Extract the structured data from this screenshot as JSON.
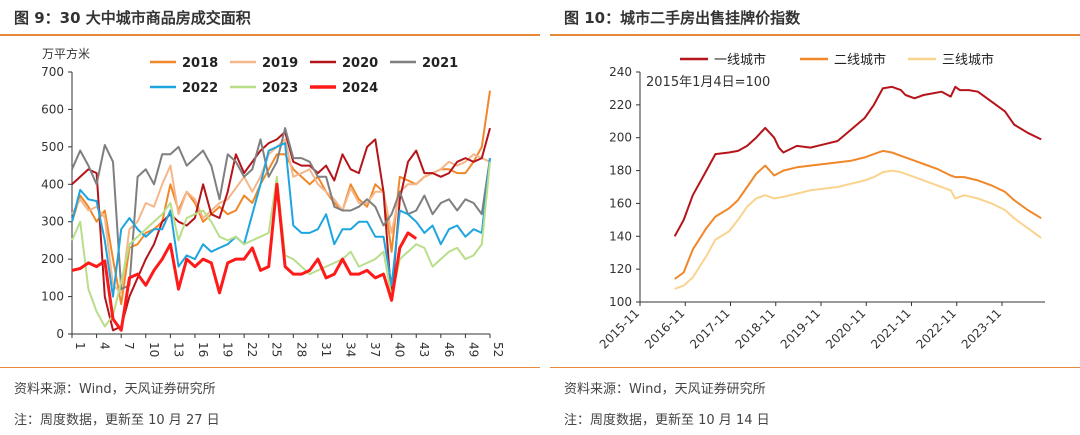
{
  "charts": [
    {
      "title": "图 9：30 大中城市商品房成交面积",
      "source": "资料来源：Wind，天风证券研究所",
      "note": "注：周度数据，更新至 10 月 27 日"
    },
    {
      "title": "图 10：城市二手房出售挂牌价指数",
      "source": "资料来源：Wind，天风证券研究所",
      "note": "注：周度数据，更新至 10 月 14 日"
    }
  ],
  "chart_data": [
    {
      "type": "line",
      "ylabel": "万平方米",
      "ylim": [
        0,
        700
      ],
      "yticks": [
        0,
        100,
        200,
        300,
        400,
        500,
        600,
        700
      ],
      "xlim": [
        1,
        52
      ],
      "xticks": [
        1,
        4,
        7,
        10,
        13,
        16,
        19,
        22,
        25,
        28,
        31,
        34,
        37,
        40,
        43,
        46,
        49,
        52
      ],
      "grid": false,
      "legend_position": "top",
      "series": [
        {
          "name": "2018",
          "color": "#f0882a",
          "x": [
            1,
            2,
            3,
            4,
            5,
            6,
            7,
            8,
            9,
            10,
            11,
            12,
            13,
            14,
            15,
            16,
            17,
            18,
            19,
            20,
            21,
            22,
            23,
            24,
            25,
            26,
            27,
            28,
            29,
            30,
            31,
            32,
            33,
            34,
            35,
            36,
            37,
            38,
            39,
            40,
            41,
            42,
            43,
            44,
            45,
            46,
            47,
            48,
            49,
            50,
            51,
            52
          ],
          "values": [
            300,
            370,
            340,
            300,
            330,
            200,
            80,
            230,
            240,
            270,
            280,
            300,
            400,
            330,
            380,
            350,
            300,
            320,
            340,
            320,
            330,
            370,
            350,
            400,
            440,
            480,
            480,
            440,
            420,
            400,
            420,
            380,
            350,
            330,
            400,
            360,
            340,
            400,
            380,
            220,
            420,
            410,
            400,
            420,
            430,
            440,
            440,
            430,
            430,
            460,
            500,
            650
          ]
        },
        {
          "name": "2019",
          "color": "#f5b78a",
          "x": [
            1,
            2,
            3,
            4,
            5,
            6,
            7,
            8,
            9,
            10,
            11,
            12,
            13,
            14,
            15,
            16,
            17,
            18,
            19,
            20,
            21,
            22,
            23,
            24,
            25,
            26,
            27,
            28,
            29,
            30,
            31,
            32,
            33,
            34,
            35,
            36,
            37,
            38,
            39,
            40,
            41,
            42,
            43,
            44,
            45,
            46,
            47,
            48,
            49,
            50,
            51,
            52
          ],
          "values": [
            320,
            360,
            330,
            340,
            310,
            130,
            110,
            280,
            300,
            350,
            340,
            400,
            450,
            320,
            380,
            360,
            310,
            330,
            350,
            360,
            390,
            420,
            380,
            420,
            480,
            500,
            520,
            420,
            430,
            440,
            400,
            380,
            360,
            330,
            390,
            350,
            350,
            380,
            380,
            270,
            380,
            400,
            400,
            420,
            430,
            440,
            460,
            450,
            460,
            480,
            470,
            460
          ]
        },
        {
          "name": "2020",
          "color": "#b5141a",
          "x": [
            1,
            2,
            3,
            4,
            5,
            6,
            7,
            8,
            9,
            10,
            11,
            12,
            13,
            14,
            15,
            16,
            17,
            18,
            19,
            20,
            21,
            22,
            23,
            24,
            25,
            26,
            27,
            28,
            29,
            30,
            31,
            32,
            33,
            34,
            35,
            36,
            37,
            38,
            39,
            40,
            41,
            42,
            43,
            44,
            45,
            46,
            47,
            48,
            49,
            50,
            51,
            52
          ],
          "values": [
            400,
            420,
            440,
            430,
            100,
            10,
            20,
            100,
            150,
            200,
            240,
            300,
            320,
            300,
            290,
            310,
            400,
            320,
            310,
            380,
            480,
            430,
            460,
            490,
            510,
            520,
            540,
            460,
            450,
            450,
            430,
            450,
            410,
            480,
            440,
            430,
            500,
            520,
            380,
            90,
            360,
            460,
            490,
            430,
            430,
            420,
            430,
            460,
            470,
            460,
            470,
            550
          ]
        },
        {
          "name": "2021",
          "color": "#7f7f7f",
          "x": [
            1,
            2,
            3,
            4,
            5,
            6,
            7,
            8,
            9,
            10,
            11,
            12,
            13,
            14,
            15,
            16,
            17,
            18,
            19,
            20,
            21,
            22,
            23,
            24,
            25,
            26,
            27,
            28,
            29,
            30,
            31,
            32,
            33,
            34,
            35,
            36,
            37,
            38,
            39,
            40,
            41,
            42,
            43,
            44,
            45,
            46,
            47,
            48,
            49,
            50,
            51,
            52
          ],
          "values": [
            440,
            490,
            450,
            400,
            505,
            460,
            120,
            130,
            420,
            440,
            400,
            480,
            480,
            500,
            450,
            470,
            490,
            450,
            360,
            480,
            460,
            420,
            440,
            520,
            420,
            460,
            550,
            470,
            470,
            460,
            420,
            420,
            340,
            330,
            330,
            340,
            360,
            340,
            290,
            320,
            380,
            320,
            330,
            370,
            320,
            350,
            360,
            330,
            360,
            350,
            320,
            470
          ]
        },
        {
          "name": "2022",
          "color": "#1ea5e0",
          "x": [
            1,
            2,
            3,
            4,
            5,
            6,
            7,
            8,
            9,
            10,
            11,
            12,
            13,
            14,
            15,
            16,
            17,
            18,
            19,
            20,
            21,
            22,
            23,
            24,
            25,
            26,
            27,
            28,
            29,
            30,
            31,
            32,
            33,
            34,
            35,
            36,
            37,
            38,
            39,
            40,
            41,
            42,
            43,
            44,
            45,
            46,
            47,
            48,
            49,
            50,
            51,
            52
          ],
          "values": [
            300,
            385,
            360,
            355,
            250,
            100,
            280,
            310,
            280,
            260,
            280,
            280,
            330,
            180,
            210,
            200,
            240,
            220,
            230,
            240,
            260,
            240,
            320,
            400,
            490,
            500,
            510,
            290,
            270,
            270,
            280,
            320,
            240,
            280,
            280,
            300,
            300,
            260,
            260,
            130,
            330,
            320,
            300,
            270,
            290,
            240,
            280,
            290,
            260,
            280,
            270,
            470
          ]
        },
        {
          "name": "2023",
          "color": "#b8de8a",
          "x": [
            1,
            2,
            3,
            4,
            5,
            6,
            7,
            8,
            9,
            10,
            11,
            12,
            13,
            14,
            15,
            16,
            17,
            18,
            19,
            20,
            21,
            22,
            23,
            24,
            25,
            26,
            27,
            28,
            29,
            30,
            31,
            32,
            33,
            34,
            35,
            36,
            37,
            38,
            39,
            40,
            41,
            42,
            43,
            44,
            45,
            46,
            47,
            48,
            49,
            50,
            51,
            52
          ],
          "values": [
            250,
            300,
            120,
            60,
            20,
            50,
            140,
            240,
            260,
            280,
            300,
            320,
            350,
            250,
            310,
            320,
            330,
            300,
            260,
            250,
            260,
            240,
            250,
            260,
            270,
            420,
            210,
            200,
            180,
            160,
            170,
            180,
            190,
            200,
            220,
            180,
            190,
            200,
            220,
            100,
            200,
            220,
            240,
            230,
            180,
            200,
            220,
            230,
            200,
            210,
            240,
            460
          ]
        },
        {
          "name": "2024",
          "color": "#ff1a1a",
          "bold": true,
          "x": [
            1,
            2,
            3,
            4,
            5,
            6,
            7,
            8,
            9,
            10,
            11,
            12,
            13,
            14,
            15,
            16,
            17,
            18,
            19,
            20,
            21,
            22,
            23,
            24,
            25,
            26,
            27,
            28,
            29,
            30,
            31,
            32,
            33,
            34,
            35,
            36,
            37,
            38,
            39,
            40,
            41,
            42,
            43
          ],
          "values": [
            170,
            175,
            190,
            180,
            195,
            40,
            10,
            150,
            160,
            130,
            170,
            200,
            240,
            120,
            200,
            180,
            200,
            190,
            110,
            190,
            200,
            200,
            230,
            170,
            180,
            400,
            180,
            160,
            160,
            170,
            200,
            150,
            160,
            200,
            160,
            160,
            170,
            150,
            160,
            90,
            230,
            270,
            255
          ]
        }
      ]
    },
    {
      "type": "line",
      "annotation": "2015年1月4日=100",
      "ylim": [
        100,
        240
      ],
      "yticks": [
        100,
        120,
        140,
        160,
        180,
        200,
        220,
        240
      ],
      "xticks": [
        "2015-11",
        "2016-11",
        "2017-11",
        "2018-11",
        "2019-11",
        "2020-11",
        "2021-11",
        "2022-11",
        "2023-11"
      ],
      "grid": false,
      "legend_position": "top",
      "series": [
        {
          "name": "一线城市",
          "color": "#b5141a",
          "x": [
            2016.6,
            2016.8,
            2017.0,
            2017.3,
            2017.5,
            2017.8,
            2018.0,
            2018.2,
            2018.4,
            2018.6,
            2018.8,
            2018.9,
            2019.0,
            2019.3,
            2019.6,
            2019.9,
            2020.2,
            2020.5,
            2020.8,
            2021.0,
            2021.2,
            2021.4,
            2021.6,
            2021.7,
            2021.9,
            2022.1,
            2022.3,
            2022.5,
            2022.7,
            2022.8,
            2022.9,
            2023.1,
            2023.3,
            2023.6,
            2023.9,
            2024.1,
            2024.4,
            2024.7
          ],
          "values": [
            140,
            150,
            165,
            180,
            190,
            191,
            192,
            195,
            200,
            206,
            200,
            194,
            191,
            195,
            194,
            196,
            198,
            205,
            212,
            220,
            230,
            231,
            229,
            226,
            224,
            226,
            227,
            228,
            225,
            231,
            229,
            229,
            228,
            222,
            216,
            208,
            203,
            199
          ]
        },
        {
          "name": "二线城市",
          "color": "#f0882a",
          "x": [
            2016.6,
            2016.8,
            2017.0,
            2017.3,
            2017.5,
            2017.8,
            2018.0,
            2018.2,
            2018.4,
            2018.6,
            2018.8,
            2019.0,
            2019.3,
            2019.6,
            2019.9,
            2020.2,
            2020.5,
            2020.8,
            2021.0,
            2021.2,
            2021.4,
            2021.6,
            2021.9,
            2022.1,
            2022.4,
            2022.7,
            2022.8,
            2023.0,
            2023.3,
            2023.6,
            2023.9,
            2024.1,
            2024.4,
            2024.7
          ],
          "values": [
            114,
            118,
            132,
            145,
            152,
            157,
            162,
            170,
            178,
            183,
            177,
            180,
            182,
            183,
            184,
            185,
            186,
            188,
            190,
            192,
            191,
            189,
            186,
            184,
            181,
            177,
            176,
            176,
            174,
            171,
            167,
            162,
            156,
            151
          ]
        },
        {
          "name": "三线城市",
          "color": "#fad38e",
          "x": [
            2016.6,
            2016.8,
            2017.0,
            2017.3,
            2017.5,
            2017.8,
            2018.0,
            2018.2,
            2018.4,
            2018.6,
            2018.8,
            2019.0,
            2019.3,
            2019.6,
            2019.9,
            2020.2,
            2020.5,
            2020.8,
            2021.0,
            2021.2,
            2021.4,
            2021.6,
            2021.9,
            2022.1,
            2022.4,
            2022.7,
            2022.8,
            2023.0,
            2023.3,
            2023.6,
            2023.9,
            2024.1,
            2024.4,
            2024.7
          ],
          "values": [
            108,
            110,
            115,
            128,
            138,
            143,
            150,
            158,
            163,
            165,
            163,
            164,
            166,
            168,
            169,
            170,
            172,
            174,
            176,
            179,
            180,
            179,
            176,
            174,
            171,
            168,
            163,
            165,
            163,
            160,
            156,
            151,
            145,
            139
          ]
        }
      ]
    }
  ]
}
